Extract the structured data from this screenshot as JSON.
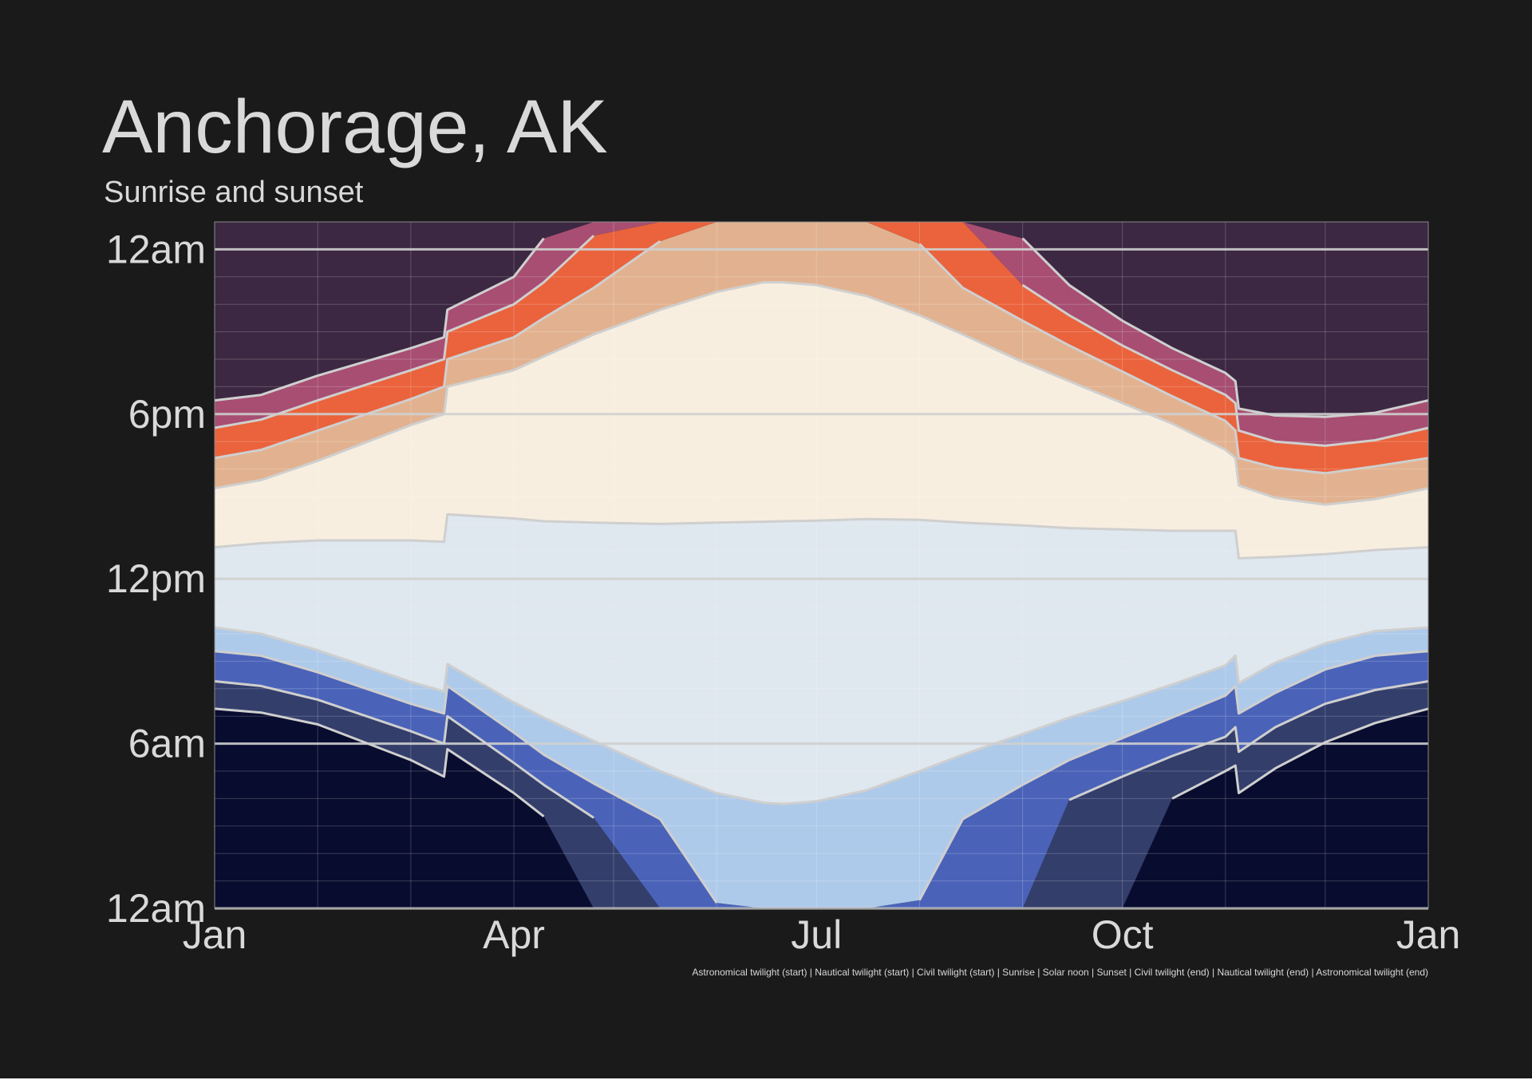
{
  "chart_data": {
    "type": "area",
    "title": "Anchorage, AK",
    "subtitle": "Sunrise and sunset",
    "xlabel": "",
    "ylabel": "",
    "x_ticks": [
      "Jan",
      "Apr",
      "Jul",
      "Oct",
      "Jan"
    ],
    "y_ticks": [
      "12am",
      "6am",
      "12pm",
      "6pm",
      "12am"
    ],
    "ylim": [
      0,
      25
    ],
    "grid": true,
    "legend_text": "Astronomical twilight (start) | Nautical twilight (start) | Civil twilight (start) | Sunrise | Solar noon | Sunset | Civil twilight (end) | Nautical twilight (end) | Astronomical twilight (end)",
    "x_day_of_year": [
      1,
      15,
      32,
      60,
      70,
      71,
      91,
      100,
      115,
      135,
      152,
      166,
      172,
      182,
      197,
      213,
      226,
      244,
      258,
      274,
      289,
      305,
      308,
      309,
      320,
      335,
      350,
      366
    ],
    "series": [
      {
        "name": "Astronomical twilight (start)",
        "values": [
          7.27,
          7.13,
          6.7,
          5.4,
          4.8,
          5.8,
          4.2,
          3.35,
          null,
          null,
          null,
          null,
          null,
          null,
          null,
          null,
          null,
          null,
          null,
          null,
          4.0,
          5.0,
          5.2,
          4.2,
          5.1,
          6.05,
          6.75,
          7.27
        ]
      },
      {
        "name": "Nautical twilight (start)",
        "values": [
          8.27,
          8.1,
          7.6,
          6.45,
          6.0,
          7.0,
          5.3,
          4.5,
          3.3,
          null,
          null,
          null,
          null,
          null,
          null,
          null,
          null,
          null,
          3.95,
          4.8,
          5.55,
          6.25,
          6.6,
          5.7,
          6.6,
          7.45,
          7.95,
          8.27
        ]
      },
      {
        "name": "Civil twilight (start)",
        "values": [
          9.37,
          9.2,
          8.6,
          7.45,
          7.1,
          8.1,
          6.4,
          5.6,
          4.55,
          3.25,
          0.2,
          null,
          null,
          null,
          null,
          0.3,
          3.25,
          4.5,
          5.4,
          6.2,
          6.95,
          7.75,
          8.1,
          7.1,
          7.85,
          8.7,
          9.2,
          9.37
        ]
      },
      {
        "name": "Sunrise",
        "values": [
          10.23,
          10.0,
          9.4,
          8.25,
          7.9,
          8.9,
          7.5,
          6.95,
          6.1,
          5.0,
          4.2,
          3.85,
          3.8,
          3.9,
          4.3,
          5.0,
          5.6,
          6.35,
          6.95,
          7.55,
          8.15,
          8.85,
          9.2,
          8.2,
          8.95,
          9.65,
          10.1,
          10.23
        ]
      },
      {
        "name": "Solar noon",
        "values": [
          13.15,
          13.3,
          13.4,
          13.4,
          13.35,
          14.35,
          14.2,
          14.1,
          14.05,
          14.0,
          14.05,
          14.08,
          14.1,
          14.12,
          14.18,
          14.15,
          14.05,
          13.95,
          13.85,
          13.8,
          13.75,
          13.75,
          13.75,
          12.75,
          12.8,
          12.9,
          13.05,
          13.15
        ]
      },
      {
        "name": "Sunset",
        "values": [
          15.3,
          15.6,
          16.3,
          17.6,
          18.0,
          19.0,
          19.6,
          20.1,
          20.9,
          21.8,
          22.45,
          22.8,
          22.8,
          22.7,
          22.3,
          21.6,
          20.9,
          19.9,
          19.2,
          18.4,
          17.65,
          16.7,
          16.4,
          15.4,
          14.95,
          14.7,
          14.9,
          15.3
        ]
      },
      {
        "name": "Civil twilight (end)",
        "values": [
          16.4,
          16.7,
          17.4,
          18.55,
          19.0,
          20.0,
          20.8,
          21.5,
          22.6,
          24.3,
          null,
          null,
          null,
          null,
          null,
          24.2,
          22.6,
          21.4,
          20.5,
          19.55,
          18.65,
          17.75,
          17.4,
          16.4,
          16.05,
          15.85,
          16.1,
          16.4
        ]
      },
      {
        "name": "Nautical twilight (end)",
        "values": [
          17.5,
          17.8,
          18.5,
          19.6,
          20.0,
          21.0,
          22.0,
          22.8,
          24.5,
          null,
          null,
          null,
          null,
          null,
          null,
          null,
          null,
          22.7,
          21.6,
          20.5,
          19.6,
          18.7,
          18.4,
          17.4,
          17.0,
          16.85,
          17.05,
          17.5
        ]
      },
      {
        "name": "Astronomical twilight (end)",
        "values": [
          18.5,
          18.7,
          19.4,
          20.4,
          20.8,
          21.8,
          23.0,
          24.4,
          null,
          null,
          null,
          null,
          null,
          null,
          null,
          null,
          null,
          24.4,
          22.7,
          21.4,
          20.4,
          19.5,
          19.2,
          18.2,
          17.95,
          17.9,
          18.05,
          18.5
        ]
      }
    ]
  }
}
